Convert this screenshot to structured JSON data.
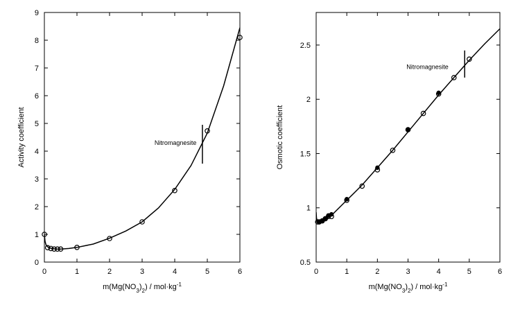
{
  "chart_data": [
    {
      "type": "scatter",
      "xlabel_parts": [
        "m(Mg(NO",
        "3",
        ")",
        "2",
        ") / mol·kg",
        "-1"
      ],
      "ylabel": "Activity coefficient",
      "xlim": [
        0,
        6
      ],
      "ylim": [
        0,
        9
      ],
      "xticks": [
        0,
        1,
        2,
        3,
        4,
        5,
        6
      ],
      "yticks": [
        0,
        1,
        2,
        3,
        4,
        5,
        6,
        7,
        8,
        9
      ],
      "grid": false,
      "series": [
        {
          "mode": "markers",
          "marker": "open-circle",
          "x": [
            0.001,
            0.1,
            0.2,
            0.3,
            0.4,
            0.5,
            1.0,
            2.0,
            3.0,
            4.0,
            5.0,
            6.0
          ],
          "y": [
            1.0,
            0.52,
            0.49,
            0.47,
            0.47,
            0.47,
            0.53,
            0.85,
            1.45,
            2.58,
            4.73,
            8.1
          ]
        },
        {
          "mode": "line",
          "x": [
            0.0,
            0.02,
            0.05,
            0.1,
            0.15,
            0.2,
            0.3,
            0.4,
            0.5,
            0.75,
            1.0,
            1.5,
            2.0,
            2.5,
            3.0,
            3.5,
            4.0,
            4.5,
            5.0,
            5.5,
            6.0
          ],
          "y": [
            1.0,
            0.75,
            0.62,
            0.55,
            0.52,
            0.5,
            0.48,
            0.47,
            0.47,
            0.49,
            0.53,
            0.65,
            0.86,
            1.12,
            1.45,
            1.95,
            2.62,
            3.48,
            4.65,
            6.35,
            8.45
          ]
        }
      ],
      "annotations": [
        {
          "text": "Nitromagnesite",
          "x": 3.38,
          "y": 4.3
        }
      ],
      "marker_lines": [
        {
          "x": 4.85,
          "y0": 3.55,
          "y1": 4.95
        }
      ]
    },
    {
      "type": "scatter",
      "xlabel_parts": [
        "m(Mg(NO",
        "3",
        ")",
        "2",
        ") / mol·kg",
        "-1"
      ],
      "ylabel": "Osmotic coefficient",
      "xlim": [
        0,
        6
      ],
      "ylim": [
        0.5,
        2.8
      ],
      "xticks": [
        0,
        1,
        2,
        3,
        4,
        5,
        6
      ],
      "yticks": [
        0.5,
        1,
        1.5,
        2,
        2.5
      ],
      "grid": false,
      "series": [
        {
          "mode": "markers",
          "marker": "open-circle",
          "x": [
            0.05,
            0.1,
            0.2,
            0.3,
            0.4,
            0.5,
            1.0,
            1.5,
            2.0,
            2.5,
            3.0,
            3.5,
            4.0,
            4.5,
            5.0
          ],
          "y": [
            0.87,
            0.87,
            0.88,
            0.9,
            0.92,
            0.92,
            1.07,
            1.2,
            1.35,
            1.53,
            1.72,
            1.87,
            2.05,
            2.2,
            2.37
          ]
        },
        {
          "mode": "markers",
          "marker": "filled-circle",
          "x": [
            0.1,
            0.2,
            0.3,
            0.4,
            0.5,
            1.0,
            2.0,
            3.0,
            4.0
          ],
          "y": [
            0.87,
            0.88,
            0.9,
            0.93,
            0.94,
            1.08,
            1.37,
            1.72,
            2.06
          ]
        },
        {
          "mode": "line",
          "x": [
            0.0,
            0.01,
            0.03,
            0.05,
            0.1,
            0.2,
            0.3,
            0.5,
            1.0,
            1.5,
            2.0,
            2.5,
            3.0,
            3.5,
            4.0,
            4.5,
            5.0,
            5.5,
            6.0
          ],
          "y": [
            0.96,
            0.91,
            0.88,
            0.87,
            0.87,
            0.88,
            0.89,
            0.93,
            1.07,
            1.21,
            1.37,
            1.53,
            1.7,
            1.87,
            2.04,
            2.2,
            2.36,
            2.51,
            2.65
          ]
        }
      ],
      "annotations": [
        {
          "text": "Nitromagnesite",
          "x": 2.95,
          "y": 2.3
        }
      ],
      "marker_lines": [
        {
          "x": 4.85,
          "y0": 2.2,
          "y1": 2.45
        }
      ]
    }
  ]
}
